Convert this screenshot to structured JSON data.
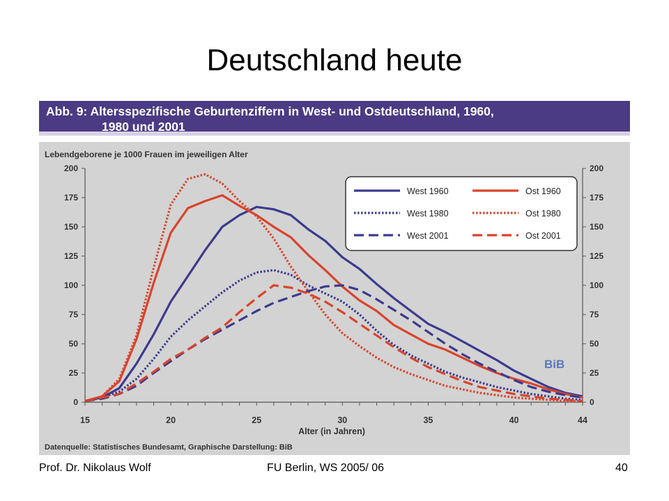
{
  "slide": {
    "title": "Deutschland heute",
    "footer_left": "Prof. Dr. Nikolaus Wolf",
    "footer_center": "FU Berlin, WS 2005/ 06",
    "page_number": "40"
  },
  "figure": {
    "heading_line1": "Abb. 9: Altersspezifische Geburtenziffern in West- und Ostdeutschland, 1960,",
    "heading_line2": "1980 und 2001",
    "unit_label": "Lebendgeborene je 1000 Frauen  im jeweiligen Alter",
    "source": "Datenquelle: Statistisches Bundesamt, Graphische Darstellung: BiB",
    "logo_text": "BiB"
  },
  "chart_data": {
    "type": "line",
    "xlabel": "Alter (in Jahren)",
    "ylabel": "Lebendgeborene je 1000 Frauen  im jeweiligen Alter",
    "xlim": [
      15,
      44
    ],
    "ylim": [
      0,
      200
    ],
    "x_ticks": [
      15,
      20,
      25,
      30,
      35,
      40,
      44
    ],
    "y_ticks": [
      0,
      25,
      50,
      75,
      100,
      125,
      150,
      175,
      200
    ],
    "grid": false,
    "legend_position": "top-right",
    "colors": {
      "west": "#3b3b8f",
      "ost": "#d9442b",
      "background": "#d3d3d3"
    },
    "x": [
      15,
      16,
      17,
      18,
      19,
      20,
      21,
      22,
      23,
      24,
      25,
      26,
      27,
      28,
      29,
      30,
      31,
      32,
      33,
      34,
      35,
      36,
      37,
      38,
      39,
      40,
      41,
      42,
      43,
      44
    ],
    "series": [
      {
        "name": "West 1960",
        "color": "#3b3b8f",
        "dash": "solid",
        "values": [
          1,
          4,
          12,
          33,
          58,
          86,
          108,
          130,
          150,
          160,
          167,
          165,
          160,
          148,
          138,
          124,
          114,
          101,
          89,
          78,
          67,
          60,
          52,
          44,
          36,
          27,
          20,
          13,
          8,
          5
        ]
      },
      {
        "name": "Ost 1960",
        "color": "#d9442b",
        "dash": "solid",
        "values": [
          1,
          5,
          18,
          54,
          102,
          145,
          166,
          172,
          177,
          168,
          160,
          150,
          141,
          126,
          113,
          99,
          87,
          78,
          66,
          58,
          50,
          45,
          38,
          31,
          25,
          20,
          16,
          11,
          7,
          4
        ]
      },
      {
        "name": "West 1980",
        "color": "#3b3b8f",
        "dash": "dotted",
        "values": [
          1,
          4,
          9,
          20,
          37,
          56,
          70,
          82,
          94,
          104,
          111,
          113,
          109,
          100,
          93,
          86,
          75,
          61,
          49,
          40,
          33,
          26,
          21,
          17,
          13,
          10,
          7,
          5,
          3,
          2
        ]
      },
      {
        "name": "Ost 1980",
        "color": "#d9442b",
        "dash": "dotted",
        "values": [
          1,
          5,
          20,
          57,
          115,
          169,
          191,
          195,
          187,
          172,
          159,
          140,
          116,
          95,
          75,
          59,
          48,
          38,
          30,
          24,
          19,
          14,
          11,
          8,
          6,
          4,
          3,
          2,
          1,
          1
        ]
      },
      {
        "name": "West 2001",
        "color": "#3b3b8f",
        "dash": "dashed",
        "values": [
          1,
          3,
          7,
          14,
          25,
          35,
          45,
          54,
          62,
          70,
          78,
          85,
          90,
          95,
          99,
          100,
          96,
          88,
          79,
          70,
          60,
          50,
          41,
          33,
          26,
          19,
          13,
          9,
          6,
          4
        ]
      },
      {
        "name": "Ost 2001",
        "color": "#d9442b",
        "dash": "dashed",
        "values": [
          1,
          4,
          7,
          16,
          26,
          37,
          45,
          55,
          64,
          77,
          89,
          100,
          98,
          93,
          86,
          77,
          67,
          57,
          47,
          38,
          30,
          24,
          18,
          13,
          10,
          7,
          5,
          3,
          2,
          1
        ]
      }
    ]
  }
}
